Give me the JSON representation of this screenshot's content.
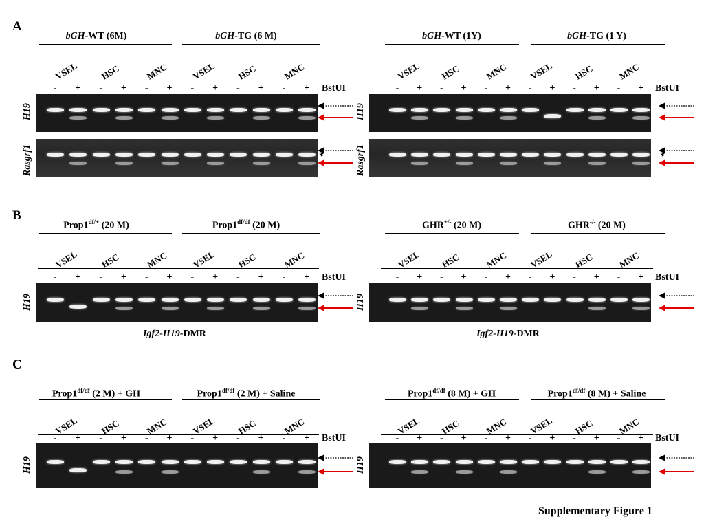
{
  "figure": {
    "caption": "Supplementary Figure 1",
    "enzyme": "BstUI",
    "cells": [
      "VSEL",
      "HSC",
      "MNC"
    ],
    "lane_signs": [
      "-",
      "+"
    ],
    "star": "*",
    "colors": {
      "gel": "#1a1a1a",
      "band": "#f1f1f1",
      "red_arrow": "#e00000",
      "black_arrow": "#000000"
    }
  },
  "panels": [
    {
      "label": "A",
      "blocks": [
        {
          "groups": [
            {
              "italic": "bGH",
              "text": "-WT (6M)",
              "sup": ""
            },
            {
              "italic": "bGH",
              "text": "-TG (6 M)",
              "sup": ""
            }
          ],
          "rows": [
            {
              "gene": "H19",
              "bands": [
                [
                  1,
                  0
                ],
                [
                  1,
                  1
                ],
                [
                  1,
                  0
                ],
                [
                  1,
                  1
                ],
                [
                  1,
                  0
                ],
                [
                  1,
                  1
                ],
                [
                  1,
                  0
                ],
                [
                  1,
                  1
                ],
                [
                  1,
                  0
                ],
                [
                  1,
                  1
                ],
                [
                  1,
                  0
                ],
                [
                  1,
                  1
                ]
              ]
            },
            {
              "gene": "Rasgrf1",
              "bands": [
                [
                  1,
                  0
                ],
                [
                  1,
                  1
                ],
                [
                  1,
                  0
                ],
                [
                  1,
                  1
                ],
                [
                  1,
                  0
                ],
                [
                  1,
                  1
                ],
                [
                  1,
                  0
                ],
                [
                  1,
                  1
                ],
                [
                  1,
                  0
                ],
                [
                  1,
                  1
                ],
                [
                  1,
                  0
                ],
                [
                  1,
                  1
                ]
              ]
            }
          ]
        },
        {
          "groups": [
            {
              "italic": "bGH",
              "text": "-WT (1Y)",
              "sup": ""
            },
            {
              "italic": "bGH",
              "text": "-TG (1 Y)",
              "sup": ""
            }
          ],
          "rows": [
            {
              "gene": "H19",
              "bands": [
                [
                  1,
                  0
                ],
                [
                  1,
                  1
                ],
                [
                  1,
                  0
                ],
                [
                  1,
                  1
                ],
                [
                  1,
                  0
                ],
                [
                  1,
                  1
                ],
                [
                  1,
                  0
                ],
                [
                  0,
                  1
                ],
                [
                  1,
                  0
                ],
                [
                  1,
                  1
                ],
                [
                  1,
                  0
                ],
                [
                  1,
                  1
                ]
              ]
            },
            {
              "gene": "Rasgrf1",
              "bands": [
                [
                  1,
                  0
                ],
                [
                  1,
                  1
                ],
                [
                  1,
                  0
                ],
                [
                  1,
                  1
                ],
                [
                  1,
                  0
                ],
                [
                  1,
                  1
                ],
                [
                  1,
                  0
                ],
                [
                  1,
                  1
                ],
                [
                  1,
                  0
                ],
                [
                  1,
                  1
                ],
                [
                  1,
                  0
                ],
                [
                  1,
                  1
                ]
              ]
            }
          ]
        }
      ]
    },
    {
      "label": "B",
      "footer_italic": "Igf2-H19",
      "footer_text": "-DMR",
      "blocks": [
        {
          "groups": [
            {
              "italic": "",
              "text": "Prop1",
              "sup": "df/+",
              "tail": "  (20 M)"
            },
            {
              "italic": "",
              "text": "Prop1",
              "sup": "df/df",
              "tail": " (20 M)"
            }
          ],
          "rows": [
            {
              "gene": "H19",
              "bands": [
                [
                  1,
                  0
                ],
                [
                  0,
                  1
                ],
                [
                  1,
                  0
                ],
                [
                  1,
                  1
                ],
                [
                  1,
                  0
                ],
                [
                  1,
                  1
                ],
                [
                  1,
                  0
                ],
                [
                  1,
                  1
                ],
                [
                  1,
                  0
                ],
                [
                  1,
                  1
                ],
                [
                  1,
                  0
                ],
                [
                  1,
                  1
                ]
              ]
            }
          ]
        },
        {
          "groups": [
            {
              "italic": "",
              "text": "GHR",
              "sup": "+/-",
              "tail": " (20 M)"
            },
            {
              "italic": "",
              "text": "GHR",
              "sup": "-/-",
              "tail": " (20 M)"
            }
          ],
          "rows": [
            {
              "gene": "H19",
              "bands": [
                [
                  1,
                  0
                ],
                [
                  1,
                  1
                ],
                [
                  1,
                  0
                ],
                [
                  1,
                  1
                ],
                [
                  1,
                  0
                ],
                [
                  1,
                  1
                ],
                [
                  1,
                  0
                ],
                [
                  1,
                  0
                ],
                [
                  1,
                  0
                ],
                [
                  1,
                  1
                ],
                [
                  1,
                  0
                ],
                [
                  1,
                  1
                ]
              ]
            }
          ]
        }
      ]
    },
    {
      "label": "C",
      "blocks": [
        {
          "groups": [
            {
              "italic": "",
              "text": "Prop1",
              "sup": "df/df",
              "tail": " (2 M) + GH"
            },
            {
              "italic": "",
              "text": "Prop1",
              "sup": "df/df",
              "tail": " (2 M) + Saline"
            }
          ],
          "rows": [
            {
              "gene": "H19",
              "bands": [
                [
                  1,
                  0
                ],
                [
                  0,
                  1
                ],
                [
                  1,
                  0
                ],
                [
                  1,
                  1
                ],
                [
                  1,
                  0
                ],
                [
                  1,
                  1
                ],
                [
                  1,
                  0
                ],
                [
                  1,
                  0
                ],
                [
                  1,
                  0
                ],
                [
                  1,
                  1
                ],
                [
                  1,
                  0
                ],
                [
                  1,
                  1
                ]
              ]
            }
          ]
        },
        {
          "groups": [
            {
              "italic": "",
              "text": "Prop1",
              "sup": "df/df",
              "tail": " (8 M) + GH"
            },
            {
              "italic": "",
              "text": "Prop1",
              "sup": "df/df",
              "tail": " (8 M) + Saline"
            }
          ],
          "rows": [
            {
              "gene": "H19",
              "bands": [
                [
                  1,
                  0
                ],
                [
                  1,
                  1
                ],
                [
                  1,
                  0
                ],
                [
                  1,
                  1
                ],
                [
                  1,
                  0
                ],
                [
                  1,
                  1
                ],
                [
                  1,
                  0
                ],
                [
                  1,
                  0
                ],
                [
                  1,
                  0
                ],
                [
                  1,
                  1
                ],
                [
                  1,
                  0
                ],
                [
                  1,
                  1
                ]
              ]
            }
          ]
        }
      ]
    }
  ]
}
